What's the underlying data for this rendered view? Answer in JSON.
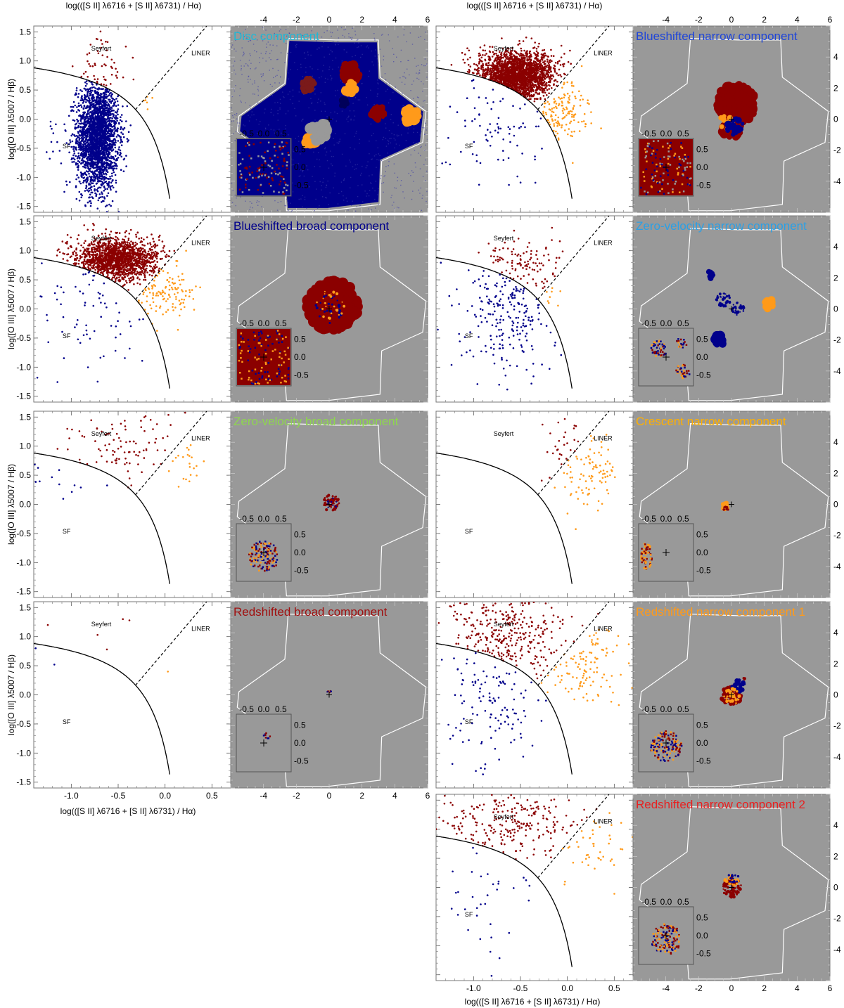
{
  "figure": {
    "top_axis_title": "log(([S II] λ6716 + [S II] λ6731) / Hα)",
    "bottom_axis_title": "log(([S II] λ6716 + [S II] λ6731) / Hα)",
    "left_axis_title": "log([O III] λ5007 / Hβ)",
    "region_labels": {
      "seyfert": "Seyfert",
      "liner": "LINER",
      "sf": "SF"
    },
    "colors": {
      "seyfert": "#8b0000",
      "liner": "#ff9a1a",
      "sf": "#00008b",
      "map_background": "#999999",
      "map_outline": "#ffffff"
    }
  },
  "panels": [
    {
      "id": "disc",
      "title": "Disc component",
      "title_color": "#1fb8d6",
      "scatter_counts": {
        "seyfert": 55,
        "liner": 6,
        "sf": 2600
      }
    },
    {
      "id": "blueshifted-narrow",
      "title": "Blueshifted narrow component",
      "title_color": "#1f45d9",
      "scatter_counts": {
        "seyfert": 2200,
        "liner": 140,
        "sf": 80
      }
    },
    {
      "id": "blueshifted-broad",
      "title": "Blueshifted broad component",
      "title_color": "#00008b",
      "scatter_counts": {
        "seyfert": 1700,
        "liner": 120,
        "sf": 70
      }
    },
    {
      "id": "zero-velocity-narrow",
      "title": "Zero-velocity narrow component",
      "title_color": "#2aa0e6",
      "scatter_counts": {
        "seyfert": 110,
        "liner": 8,
        "sf": 220
      }
    },
    {
      "id": "zero-velocity-broad",
      "title": "Zero-velocity broad component",
      "title_color": "#8ed64e",
      "scatter_counts": {
        "seyfert": 95,
        "liner": 22,
        "sf": 12
      }
    },
    {
      "id": "crescent-narrow",
      "title": "Crescent narrow component",
      "title_color": "#ffb000",
      "scatter_counts": {
        "seyfert": 28,
        "liner": 90,
        "sf": 0
      }
    },
    {
      "id": "redshifted-broad",
      "title": "Redshifted broad component",
      "title_color": "#a01010",
      "scatter_counts": {
        "seyfert": 4,
        "liner": 1,
        "sf": 2
      }
    },
    {
      "id": "redshifted-narrow-1",
      "title": "Redshifted narrow component 1",
      "title_color": "#ff9a1a",
      "scatter_counts": {
        "seyfert": 300,
        "liner": 110,
        "sf": 120
      }
    },
    {
      "id": "redshifted-narrow-2",
      "title": "Redshifted narrow component 2",
      "title_color": "#e82020",
      "scatter_counts": {
        "seyfert": 230,
        "liner": 45,
        "sf": 35
      }
    }
  ],
  "chart_data": {
    "type": "scatter",
    "title": "",
    "description_note": "Diagnostic [O III]/Hβ vs [S II]/Hα diagrams for nine kinematic components, each paired with a spatial classification map.",
    "diagram": {
      "xlabel": "log(([S II] λ6716 + [S II] λ6731) / Hα)",
      "ylabel": "log([O III] λ5007 / Hβ)",
      "xlim": [
        -1.4,
        0.7
      ],
      "ylim": [
        -1.6,
        1.6
      ],
      "xticks": [
        -1.0,
        -0.5,
        0.0,
        0.5
      ],
      "xtick_labels": [
        "-1.0",
        "-0.5",
        "0.0",
        "0.5"
      ],
      "yticks": [
        -1.5,
        -1.0,
        -0.5,
        0.0,
        0.5,
        1.0,
        1.5
      ],
      "ytick_labels": [
        "-1.5",
        "-1.0",
        "-0.5",
        "0.0",
        "0.5",
        "1.0",
        "1.5"
      ],
      "sf_boundary": "log([OIII]/Hβ) = 0.72 / (x - 0.32) + 1.30",
      "seyfert_liner_line": "log([OIII]/Hβ) = 1.89 x + 0.76",
      "series": [
        {
          "name": "Seyfert",
          "color": "#8b0000"
        },
        {
          "name": "LINER",
          "color": "#ff9a1a"
        },
        {
          "name": "SF",
          "color": "#00008b"
        }
      ]
    },
    "map": {
      "xlim": [
        -6,
        6
      ],
      "ylim": [
        -6,
        6
      ],
      "xticks": [
        -4,
        -2,
        0,
        2,
        4,
        6
      ],
      "xtick_labels": [
        "-4",
        "-2",
        "0",
        "2",
        "4",
        "6"
      ],
      "yticks": [
        -4,
        -2,
        0,
        2,
        4
      ],
      "ytick_labels": [
        "-4",
        "-2",
        "0",
        "2",
        "4"
      ],
      "inset_ticks": [
        -0.5,
        0.0,
        0.5
      ],
      "inset_tick_labels": [
        "-0.5",
        "0.0",
        "0.5"
      ]
    }
  }
}
